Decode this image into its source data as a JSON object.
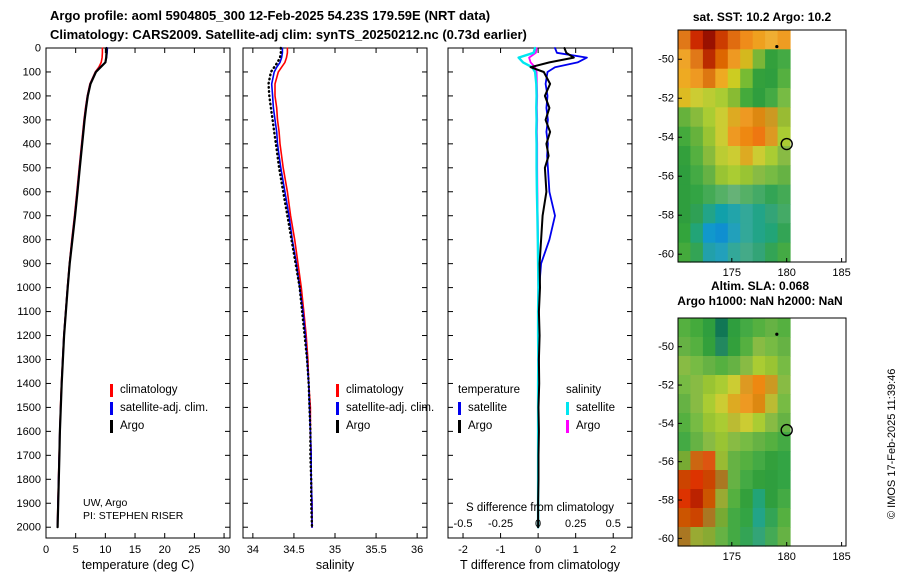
{
  "header": {
    "title_line1": "Argo profile: aoml 5904805_300 12-Feb-2025 54.23S 179.59E (NRT data)",
    "title_line2": "Climatology: CARS2009. Satellite-adj clim: synTS_20250212.nc (0.73d earlier)"
  },
  "annotations": {
    "org": "UW, Argo",
    "pi": "PI: STEPHEN RISER"
  },
  "credit": "© IMOS 17-Feb-2025 11:39:46",
  "chart_data": [
    {
      "id": "temperature_profile",
      "type": "line",
      "xlabel": "temperature (deg C)",
      "ylabel": "",
      "render_xlim": [
        0,
        31
      ],
      "render_ylim": [
        0,
        2045
      ],
      "xticks": [
        0,
        5,
        10,
        15,
        20,
        25,
        30
      ],
      "yticks": [
        0,
        100,
        200,
        300,
        400,
        500,
        600,
        700,
        800,
        900,
        1000,
        1100,
        1200,
        1300,
        1400,
        1500,
        1600,
        1700,
        1800,
        1900,
        2000
      ],
      "show_depth_labels": true,
      "depth": [
        0,
        20,
        40,
        60,
        80,
        100,
        150,
        200,
        250,
        300,
        350,
        400,
        450,
        500,
        600,
        700,
        800,
        900,
        1000,
        1100,
        1200,
        1300,
        1400,
        1500,
        1600,
        1700,
        1800,
        1900,
        2000
      ],
      "series": [
        {
          "name": "climatology",
          "color": "#ff0000",
          "lw": 1.6,
          "values": [
            9.5,
            9.5,
            9.45,
            9.3,
            8.9,
            8.3,
            7.4,
            6.95,
            6.65,
            6.4,
            6.2,
            6.0,
            5.8,
            5.6,
            5.2,
            4.8,
            4.35,
            3.95,
            3.6,
            3.3,
            3.0,
            2.8,
            2.6,
            2.45,
            2.32,
            2.2,
            2.1,
            2.0,
            1.92
          ]
        },
        {
          "name": "satellite-adj. clim.",
          "color": "#0000ee",
          "lw": 1.6,
          "values": [
            10.35,
            10.3,
            10.2,
            10.0,
            9.1,
            8.35,
            7.45,
            7.0,
            6.7,
            6.45,
            6.25,
            6.05,
            5.85,
            5.65,
            5.25,
            4.85,
            4.4,
            3.97,
            3.62,
            3.32,
            3.02,
            2.82,
            2.62,
            2.47,
            2.33,
            2.22,
            2.12,
            2.02,
            1.93
          ]
        },
        {
          "name": "Argo",
          "color": "#000000",
          "lw": 2.2,
          "values": [
            10.2,
            10.2,
            10.15,
            10.0,
            9.2,
            8.4,
            7.5,
            7.05,
            6.75,
            6.5,
            6.3,
            6.1,
            5.9,
            5.7,
            5.3,
            4.9,
            4.45,
            4.0,
            3.65,
            3.35,
            3.05,
            2.85,
            2.65,
            2.5,
            2.35,
            2.25,
            2.15,
            2.05,
            1.95
          ]
        }
      ],
      "legend": [
        {
          "label": "climatology",
          "color": "#ff0000"
        },
        {
          "label": "satellite-adj. clim.",
          "color": "#0000ee"
        },
        {
          "label": "Argo",
          "color": "#000000"
        }
      ]
    },
    {
      "id": "salinity_profile",
      "type": "line",
      "xlabel": "salinity",
      "ylabel": "",
      "render_xlim": [
        33.88,
        36.12
      ],
      "render_ylim": [
        0,
        2045
      ],
      "xticks": [
        34,
        34.5,
        35,
        35.5,
        36
      ],
      "yticks": [
        0,
        100,
        200,
        300,
        400,
        500,
        600,
        700,
        800,
        900,
        1000,
        1100,
        1200,
        1300,
        1400,
        1500,
        1600,
        1700,
        1800,
        1900,
        2000
      ],
      "show_depth_labels": false,
      "depth": [
        0,
        20,
        40,
        60,
        80,
        100,
        150,
        200,
        250,
        300,
        350,
        400,
        450,
        500,
        600,
        700,
        800,
        900,
        1000,
        1100,
        1200,
        1300,
        1400,
        1500,
        1600,
        1700,
        1800,
        1900,
        2000
      ],
      "series": [
        {
          "name": "climatology",
          "color": "#ff0000",
          "lw": 1.6,
          "values": [
            34.42,
            34.42,
            34.41,
            34.39,
            34.35,
            34.31,
            34.27,
            34.27,
            34.29,
            34.3,
            34.32,
            34.33,
            34.35,
            34.37,
            34.42,
            34.46,
            34.51,
            34.55,
            34.59,
            34.62,
            34.65,
            34.67,
            34.68,
            34.7,
            34.7,
            34.71,
            34.71,
            34.72,
            34.72
          ]
        },
        {
          "name": "satellite-adj. clim.",
          "color": "#0000ee",
          "lw": 1.6,
          "values": [
            34.36,
            34.36,
            34.35,
            34.33,
            34.29,
            34.26,
            34.23,
            34.24,
            34.25,
            34.27,
            34.29,
            34.3,
            34.32,
            34.34,
            34.39,
            34.44,
            34.48,
            34.53,
            34.57,
            34.61,
            34.64,
            34.66,
            34.68,
            34.69,
            34.7,
            34.71,
            34.71,
            34.72,
            34.72
          ]
        },
        {
          "name": "Argo",
          "color": "#000000",
          "lw": 2.4,
          "dash": "0.6 3.6",
          "values": [
            34.34,
            34.34,
            34.33,
            34.3,
            34.26,
            34.22,
            34.19,
            34.2,
            34.22,
            34.24,
            34.26,
            34.28,
            34.3,
            34.32,
            34.37,
            34.42,
            34.47,
            34.52,
            34.57,
            34.6,
            34.63,
            34.66,
            34.68,
            34.69,
            34.7,
            34.7,
            34.71,
            34.71,
            34.72
          ]
        }
      ],
      "legend": [
        {
          "label": "climatology",
          "color": "#ff0000"
        },
        {
          "label": "satellite-adj. clim.",
          "color": "#0000ee"
        },
        {
          "label": "Argo",
          "color": "#000000"
        }
      ]
    },
    {
      "id": "difference_profile",
      "type": "line",
      "xlabel": "T difference from climatology",
      "ylabel": "",
      "render_xlim": [
        -2.4,
        2.5
      ],
      "render_ylim": [
        0,
        2045
      ],
      "xticks": [
        -2,
        -1,
        0,
        1,
        2
      ],
      "yticks": [
        0,
        100,
        200,
        300,
        400,
        500,
        600,
        700,
        800,
        900,
        1000,
        1100,
        1200,
        1300,
        1400,
        1500,
        1600,
        1700,
        1800,
        1900,
        2000
      ],
      "show_depth_labels": false,
      "depth": [
        0,
        20,
        40,
        60,
        80,
        100,
        150,
        200,
        250,
        300,
        350,
        400,
        450,
        500,
        600,
        700,
        800,
        900,
        1000,
        1100,
        1200,
        1300,
        1400,
        1500,
        1600,
        1700,
        1800,
        1900,
        2000
      ],
      "secondary_axis": {
        "label": "S difference from climatology",
        "tick_labels": [
          "-0.5",
          "-0.25",
          "0",
          "0.25",
          "0.5"
        ]
      },
      "series": [
        {
          "name": "S Argo",
          "color": "#ff00ff",
          "lw": 1.8,
          "scale": 4,
          "values": [
            -0.01,
            -0.015,
            -0.06,
            -0.05,
            -0.02,
            -0.01,
            -0.008,
            -0.006,
            -0.008,
            -0.006,
            -0.008,
            -0.006,
            -0.006,
            -0.006,
            -0.005,
            -0.003,
            -0.001,
            0.0,
            0.001,
            0.0,
            0.0,
            0.0,
            0.0,
            0.0,
            0.0,
            0.0,
            0.0,
            0.0,
            0.0
          ]
        },
        {
          "name": "T satellite",
          "color": "#0000ee",
          "lw": 1.8,
          "values": [
            0.45,
            0.5,
            1.3,
            1.05,
            0.45,
            0.25,
            0.2,
            0.25,
            0.22,
            0.26,
            0.22,
            0.26,
            0.24,
            0.26,
            0.3,
            0.45,
            0.3,
            0.08,
            0.03,
            0.02,
            0.02,
            0.02,
            0.01,
            0.01,
            0.01,
            0.0,
            0.0,
            0.0,
            0.0
          ]
        },
        {
          "name": "S satellite",
          "color": "#00e6f0",
          "lw": 2.4,
          "scale": 4,
          "values": [
            -0.02,
            -0.03,
            -0.13,
            -0.1,
            -0.04,
            -0.02,
            -0.012,
            -0.01,
            -0.012,
            -0.01,
            -0.012,
            -0.01,
            -0.01,
            -0.01,
            -0.008,
            -0.005,
            -0.002,
            0.0,
            0.002,
            0.0,
            0.0,
            0.001,
            0.0,
            0.0,
            0.0,
            0.0,
            0.0,
            0.0,
            0.0
          ]
        },
        {
          "name": "T Argo",
          "color": "#000000",
          "lw": 2.0,
          "values": [
            0.7,
            0.75,
            0.95,
            0.3,
            -0.2,
            0.15,
            0.32,
            0.18,
            0.3,
            0.2,
            0.32,
            0.22,
            0.28,
            0.18,
            0.22,
            0.12,
            0.08,
            0.04,
            0.05,
            0.02,
            0.04,
            0.02,
            0.03,
            0.01,
            0.02,
            0.01,
            0.01,
            0.0,
            0.0
          ]
        }
      ],
      "legend_groups": [
        {
          "title": "temperature",
          "items": [
            {
              "label": "satellite",
              "color": "#0000ee"
            },
            {
              "label": "Argo",
              "color": "#000000"
            }
          ]
        },
        {
          "title": "salinity",
          "items": [
            {
              "label": "satellite",
              "color": "#00e6f0"
            },
            {
              "label": "Argo",
              "color": "#ff00ff"
            }
          ]
        }
      ]
    },
    {
      "id": "sst_map",
      "type": "heatmap",
      "title": "sat. SST: 10.2 Argo: 10.2",
      "lonlim": [
        170.1,
        185.4
      ],
      "latlim": [
        -48.5,
        -60.4
      ],
      "data_lon_extent": [
        170.1,
        180.3
      ],
      "xticks": [
        175,
        180,
        185
      ],
      "yticks": [
        -50,
        -52,
        -54,
        -56,
        -58,
        -60
      ],
      "float_marker": {
        "lon": 180.0,
        "lat": -54.35
      },
      "dot_marker": {
        "lon": 179.1,
        "lat": -49.35
      },
      "grid": [
        [
          "#e07818",
          "#cc2a00",
          "#991100",
          "#cc3c00",
          "#e06c10",
          "#ef8c1a",
          "#efa01f",
          "#f0ae32",
          "#ef9c22"
        ],
        [
          "#efa428",
          "#e07818",
          "#bb2b00",
          "#dd6600",
          "#ee9922",
          "#d4b81e",
          "#7ab637",
          "#33a03c",
          "#44aa44"
        ],
        [
          "#eeaa22",
          "#ee9922",
          "#dd7711",
          "#eeaa22",
          "#cccc22",
          "#77bb33",
          "#33a03c",
          "#2f9e3e",
          "#55b040"
        ],
        [
          "#ddbb22",
          "#cccc33",
          "#bbcc33",
          "#aacc33",
          "#88bb33",
          "#44aa3c",
          "#2f9e3e",
          "#44aa44",
          "#77bb44"
        ],
        [
          "#66b23c",
          "#88bb3c",
          "#aacc33",
          "#cccc33",
          "#ddaa22",
          "#ee9922",
          "#dd8811",
          "#cc9922",
          "#99bb33"
        ],
        [
          "#44aa3c",
          "#66b23c",
          "#99c433",
          "#cccc33",
          "#ee9922",
          "#ee8811",
          "#ee7711",
          "#dd9922",
          "#aacc33"
        ],
        [
          "#33a03c",
          "#55b040",
          "#88bb3c",
          "#bbcc33",
          "#cccc33",
          "#ddaa22",
          "#cccc33",
          "#aacc33",
          "#88bb44"
        ],
        [
          "#2f9e3e",
          "#44aa44",
          "#66b244",
          "#99c433",
          "#aacc33",
          "#99c433",
          "#88bb44",
          "#77bb44",
          "#66b244"
        ],
        [
          "#2f9e3e",
          "#33a444",
          "#44aa55",
          "#55b066",
          "#66b277",
          "#55b066",
          "#44aa66",
          "#33a455",
          "#44aa55"
        ],
        [
          "#2f9e3e",
          "#2fa055",
          "#22a488",
          "#11a0aa",
          "#22a4aa",
          "#33a899",
          "#22a488",
          "#33a477",
          "#44aa66"
        ],
        [
          "#33a43c",
          "#22a477",
          "#1198cc",
          "#0f8fd0",
          "#22a0bb",
          "#33a899",
          "#22a488",
          "#22a477",
          "#33a455"
        ],
        [
          "#44aa3c",
          "#33a455",
          "#22a0aa",
          "#22a0bb",
          "#33a899",
          "#44aa88",
          "#33a477",
          "#33a455",
          "#44aa44"
        ]
      ]
    },
    {
      "id": "sla_map",
      "type": "heatmap",
      "title_line1": "Altim. SLA: 0.068",
      "title_line2": "Argo h1000: NaN h2000: NaN",
      "lonlim": [
        170.1,
        185.4
      ],
      "latlim": [
        -48.5,
        -60.4
      ],
      "data_lon_extent": [
        170.1,
        180.3
      ],
      "xticks": [
        175,
        180,
        185
      ],
      "yticks": [
        -50,
        -52,
        -54,
        -56,
        -58,
        -60
      ],
      "float_marker": {
        "lon": 180.0,
        "lat": -54.35
      },
      "dot_marker": {
        "lon": 179.1,
        "lat": -49.35
      },
      "grid": [
        [
          "#55b040",
          "#44aa3c",
          "#2f9e3e",
          "#117755",
          "#2f9e3e",
          "#44aa44",
          "#55b040",
          "#66b244",
          "#55b040"
        ],
        [
          "#66b244",
          "#55b040",
          "#33a03c",
          "#22885f",
          "#33a03c",
          "#55b040",
          "#88bb44",
          "#77bb44",
          "#66b244"
        ],
        [
          "#88bb44",
          "#77bb44",
          "#66b244",
          "#55b040",
          "#66b244",
          "#88bb44",
          "#aacc33",
          "#99c433",
          "#77bb44"
        ],
        [
          "#77bb44",
          "#88bb44",
          "#99c433",
          "#aacc33",
          "#cccc33",
          "#dd9922",
          "#ee8811",
          "#cc9922",
          "#88bb44"
        ],
        [
          "#66b244",
          "#88bb44",
          "#aacc33",
          "#cccc33",
          "#ddaa22",
          "#ee9922",
          "#dd8811",
          "#bbbb33",
          "#77bb44"
        ],
        [
          "#55b040",
          "#77bb44",
          "#99c433",
          "#aacc33",
          "#bbbb33",
          "#cccc33",
          "#aacc33",
          "#88bb44",
          "#66b244"
        ],
        [
          "#44aa44",
          "#66b244",
          "#88bb44",
          "#99c433",
          "#88bb44",
          "#77bb44",
          "#66b244",
          "#55b040",
          "#44aa44"
        ],
        [
          "#77aa33",
          "#cc6611",
          "#dd5511",
          "#99bb33",
          "#66b244",
          "#55b040",
          "#44aa44",
          "#33a03c",
          "#33a444"
        ],
        [
          "#cc4400",
          "#dd3300",
          "#cc4400",
          "#aa7722",
          "#66b244",
          "#44aa44",
          "#33a03c",
          "#2f9e3e",
          "#33a444"
        ],
        [
          "#dd3300",
          "#bb2200",
          "#cc5500",
          "#99aa33",
          "#55b040",
          "#33a03c",
          "#22a477",
          "#2f9e3e",
          "#44aa44"
        ],
        [
          "#cc5500",
          "#cc4400",
          "#aa7722",
          "#77aa33",
          "#44aa44",
          "#33a444",
          "#22a488",
          "#33a455",
          "#55b040"
        ],
        [
          "#aa7722",
          "#99aa33",
          "#88aa33",
          "#66b244",
          "#44aa44",
          "#33a455",
          "#33a477",
          "#44aa55",
          "#66b244"
        ]
      ]
    }
  ]
}
